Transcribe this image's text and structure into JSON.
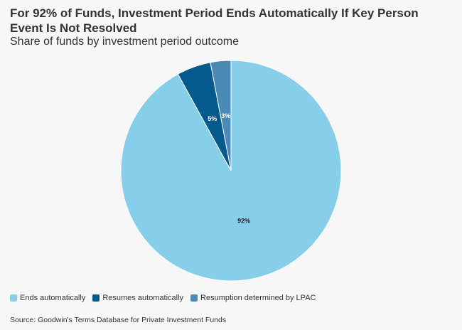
{
  "chart_data": {
    "type": "pie",
    "title": "For 92% of Funds, Investment Period Ends Automatically If Key Person Event Is Not Resolved",
    "subtitle": "Share of funds by investment period outcome",
    "categories": [
      "Ends automatically",
      "Resumes automatically",
      "Resumption determined by LPAC"
    ],
    "values": [
      92,
      5,
      3
    ],
    "labels": [
      "92%",
      "5%",
      "3%"
    ],
    "colors": [
      "#87ceeb",
      "#045a8d",
      "#4a8ab5"
    ],
    "legend_position": "bottom-left",
    "source": "Source: Goodwin's Terms Database for Private Investment Funds"
  }
}
